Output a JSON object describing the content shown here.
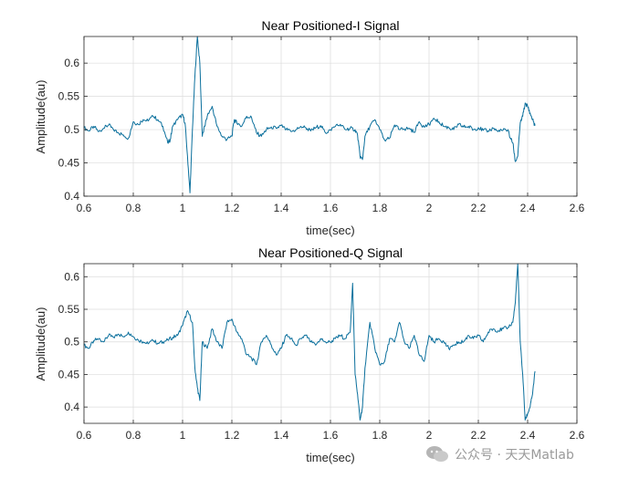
{
  "colors": {
    "trace": "#0a6f9c",
    "grid": "#dcdcdc",
    "axis": "#262626"
  },
  "watermark": {
    "text": "公众号 · 天天Matlab",
    "icon": "wechat-icon"
  },
  "chart_data": [
    {
      "type": "line",
      "title": "Near Positioned-I Signal",
      "xlabel": "time(sec)",
      "ylabel": "Amplitude(au)",
      "xlim": [
        0.6,
        2.6
      ],
      "ylim": [
        0.4,
        0.64
      ],
      "xticks": [
        "0.6",
        "0.8",
        "1",
        "1.2",
        "1.4",
        "1.6",
        "1.8",
        "2",
        "2.2",
        "2.4",
        "2.6"
      ],
      "yticks": [
        "0.4",
        "0.45",
        "0.5",
        "0.55",
        "0.6"
      ],
      "grid": true,
      "series": [
        {
          "x": [
            0.6,
            0.62,
            0.64,
            0.66,
            0.68,
            0.7,
            0.72,
            0.74,
            0.76,
            0.78,
            0.8,
            0.82,
            0.84,
            0.86,
            0.88,
            0.9,
            0.92,
            0.94,
            0.95,
            0.96,
            0.98,
            1.0,
            1.01,
            1.02,
            1.03,
            1.04,
            1.05,
            1.06,
            1.07,
            1.08,
            1.09,
            1.1,
            1.12,
            1.14,
            1.16,
            1.18,
            1.2,
            1.21,
            1.22,
            1.24,
            1.26,
            1.28,
            1.3,
            1.32,
            1.34,
            1.36,
            1.38,
            1.4,
            1.42,
            1.44,
            1.46,
            1.48,
            1.5,
            1.52,
            1.54,
            1.56,
            1.58,
            1.6,
            1.62,
            1.64,
            1.66,
            1.68,
            1.7,
            1.71,
            1.72,
            1.73,
            1.74,
            1.76,
            1.78,
            1.8,
            1.82,
            1.84,
            1.86,
            1.88,
            1.9,
            1.92,
            1.94,
            1.96,
            1.98,
            2.0,
            2.02,
            2.04,
            2.06,
            2.08,
            2.1,
            2.12,
            2.14,
            2.16,
            2.18,
            2.2,
            2.22,
            2.24,
            2.26,
            2.28,
            2.3,
            2.32,
            2.33,
            2.34,
            2.35,
            2.36,
            2.37,
            2.38,
            2.39,
            2.4,
            2.41,
            2.42,
            2.43
          ],
          "y": [
            0.503,
            0.498,
            0.505,
            0.497,
            0.502,
            0.507,
            0.5,
            0.495,
            0.492,
            0.487,
            0.512,
            0.508,
            0.515,
            0.513,
            0.52,
            0.515,
            0.505,
            0.48,
            0.485,
            0.505,
            0.515,
            0.523,
            0.51,
            0.46,
            0.405,
            0.5,
            0.58,
            0.64,
            0.6,
            0.49,
            0.505,
            0.52,
            0.535,
            0.505,
            0.49,
            0.485,
            0.49,
            0.515,
            0.51,
            0.505,
            0.52,
            0.518,
            0.495,
            0.49,
            0.5,
            0.504,
            0.502,
            0.506,
            0.5,
            0.497,
            0.5,
            0.505,
            0.503,
            0.498,
            0.503,
            0.506,
            0.495,
            0.5,
            0.505,
            0.508,
            0.5,
            0.502,
            0.5,
            0.492,
            0.46,
            0.455,
            0.49,
            0.505,
            0.515,
            0.5,
            0.484,
            0.487,
            0.507,
            0.5,
            0.501,
            0.502,
            0.496,
            0.512,
            0.504,
            0.508,
            0.517,
            0.512,
            0.505,
            0.503,
            0.5,
            0.508,
            0.504,
            0.505,
            0.5,
            0.503,
            0.499,
            0.498,
            0.502,
            0.497,
            0.499,
            0.5,
            0.487,
            0.48,
            0.452,
            0.46,
            0.51,
            0.52,
            0.54,
            0.535,
            0.525,
            0.515,
            0.506
          ]
        }
      ]
    },
    {
      "type": "line",
      "title": "Near Positioned-Q Signal",
      "xlabel": "time(sec)",
      "ylabel": "Amplitude(au)",
      "xlim": [
        0.6,
        2.6
      ],
      "ylim": [
        0.375,
        0.62
      ],
      "xticks": [
        "0.6",
        "0.8",
        "1",
        "1.2",
        "1.4",
        "1.6",
        "1.8",
        "2",
        "2.2",
        "2.4",
        "2.6"
      ],
      "yticks": [
        "0.4",
        "0.45",
        "0.5",
        "0.55",
        "0.6"
      ],
      "grid": true,
      "series": [
        {
          "x": [
            0.6,
            0.62,
            0.64,
            0.66,
            0.68,
            0.7,
            0.72,
            0.74,
            0.76,
            0.78,
            0.8,
            0.82,
            0.84,
            0.86,
            0.88,
            0.9,
            0.92,
            0.94,
            0.96,
            0.98,
            1.0,
            1.02,
            1.04,
            1.05,
            1.06,
            1.07,
            1.08,
            1.1,
            1.12,
            1.14,
            1.16,
            1.18,
            1.2,
            1.22,
            1.24,
            1.26,
            1.28,
            1.3,
            1.32,
            1.34,
            1.36,
            1.38,
            1.4,
            1.42,
            1.44,
            1.46,
            1.48,
            1.5,
            1.52,
            1.54,
            1.56,
            1.58,
            1.6,
            1.62,
            1.64,
            1.66,
            1.68,
            1.69,
            1.7,
            1.71,
            1.72,
            1.73,
            1.74,
            1.76,
            1.78,
            1.8,
            1.82,
            1.84,
            1.86,
            1.88,
            1.9,
            1.92,
            1.94,
            1.96,
            1.98,
            2.0,
            2.02,
            2.04,
            2.06,
            2.08,
            2.1,
            2.12,
            2.14,
            2.16,
            2.18,
            2.2,
            2.22,
            2.24,
            2.26,
            2.28,
            2.3,
            2.32,
            2.34,
            2.35,
            2.36,
            2.37,
            2.38,
            2.39,
            2.4,
            2.41,
            2.42,
            2.43
          ],
          "y": [
            0.495,
            0.49,
            0.502,
            0.505,
            0.5,
            0.51,
            0.507,
            0.512,
            0.508,
            0.515,
            0.508,
            0.503,
            0.5,
            0.497,
            0.502,
            0.498,
            0.5,
            0.503,
            0.507,
            0.51,
            0.525,
            0.548,
            0.53,
            0.46,
            0.43,
            0.41,
            0.5,
            0.49,
            0.52,
            0.5,
            0.49,
            0.53,
            0.535,
            0.515,
            0.505,
            0.48,
            0.475,
            0.465,
            0.5,
            0.51,
            0.495,
            0.48,
            0.49,
            0.51,
            0.505,
            0.495,
            0.505,
            0.51,
            0.5,
            0.495,
            0.505,
            0.5,
            0.5,
            0.505,
            0.51,
            0.505,
            0.515,
            0.59,
            0.45,
            0.42,
            0.38,
            0.4,
            0.46,
            0.53,
            0.49,
            0.465,
            0.47,
            0.505,
            0.5,
            0.53,
            0.5,
            0.49,
            0.51,
            0.48,
            0.47,
            0.51,
            0.5,
            0.505,
            0.5,
            0.49,
            0.495,
            0.5,
            0.5,
            0.51,
            0.505,
            0.51,
            0.5,
            0.515,
            0.52,
            0.517,
            0.52,
            0.522,
            0.53,
            0.56,
            0.62,
            0.5,
            0.45,
            0.38,
            0.39,
            0.4,
            0.42,
            0.455
          ]
        }
      ]
    }
  ]
}
